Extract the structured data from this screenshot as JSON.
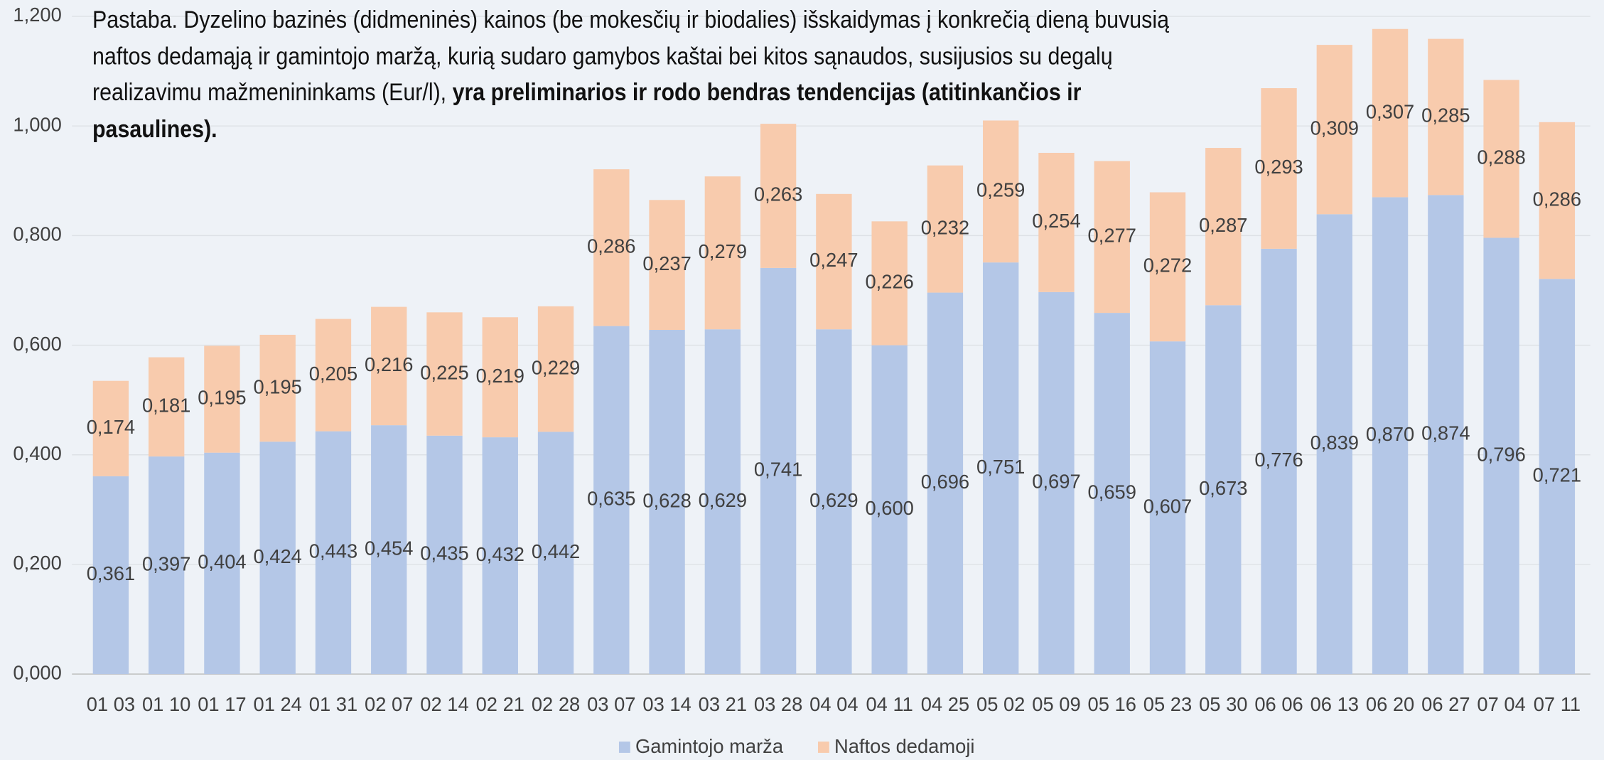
{
  "chart_data": {
    "type": "stacked_bar",
    "annotation": "Pastaba. Dyzelino bazinės (didmeninės) kainos (be mokesčių ir biodalies) išskaidymas į konkrečią dieną buvusią naftos dedamąją ir gamintojo maržą, kurią sudaro gamybos kaštai bei kitos sąnaudos, susijusios su degalų realizavimu mažmenininkams (Eur/l),",
    "annotation_bold": "yra preliminarios ir rodo bendras tendencijas (atitinkančios ir pasaulines).",
    "categories": [
      "01 03",
      "01 10",
      "01 17",
      "01 24",
      "01 31",
      "02 07",
      "02 14",
      "02 21",
      "02 28",
      "03 07",
      "03 14",
      "03 21",
      "03 28",
      "04 04",
      "04 11",
      "04 25",
      "05 02",
      "05 09",
      "05 16",
      "05 23",
      "05 30",
      "06 06",
      "06 13",
      "06 20",
      "06 27",
      "07 04",
      "07 11"
    ],
    "series": [
      {
        "name": "Gamintojo marža",
        "color": "#b4c7e7",
        "values": [
          0.361,
          0.397,
          0.404,
          0.424,
          0.443,
          0.454,
          0.435,
          0.432,
          0.442,
          0.635,
          0.628,
          0.629,
          0.741,
          0.629,
          0.6,
          0.696,
          0.751,
          0.697,
          0.659,
          0.607,
          0.673,
          0.776,
          0.839,
          0.87,
          0.874,
          0.796,
          0.721
        ],
        "value_labels": [
          "0,361",
          "0,397",
          "0,404",
          "0,424",
          "0,443",
          "0,454",
          "0,435",
          "0,432",
          "0,442",
          "0,635",
          "0,628",
          "0,629",
          "0,741",
          "0,629",
          "0,600",
          "0,696",
          "0,751",
          "0,697",
          "0,659",
          "0,607",
          "0,673",
          "0,776",
          "0,839",
          "0,870",
          "0,874",
          "0,796",
          "0,721"
        ]
      },
      {
        "name": "Naftos dedamoji",
        "color": "#f8cbad",
        "values": [
          0.174,
          0.181,
          0.195,
          0.195,
          0.205,
          0.216,
          0.225,
          0.219,
          0.229,
          0.286,
          0.237,
          0.279,
          0.263,
          0.247,
          0.226,
          0.232,
          0.259,
          0.254,
          0.277,
          0.272,
          0.287,
          0.293,
          0.309,
          0.307,
          0.285,
          0.288,
          0.286
        ],
        "value_labels": [
          "0,174",
          "0,181",
          "0,195",
          "0,195",
          "0,205",
          "0,216",
          "0,225",
          "0,219",
          "0,229",
          "0,286",
          "0,237",
          "0,279",
          "0,263",
          "0,247",
          "0,226",
          "0,232",
          "0,259",
          "0,254",
          "0,277",
          "0,272",
          "0,287",
          "0,293",
          "0,309",
          "0,307",
          "0,285",
          "0,288",
          "0,286"
        ]
      }
    ],
    "ylim": [
      0,
      1.2
    ],
    "yticks": [
      {
        "value": 0,
        "label": "0,000"
      },
      {
        "value": 0.2,
        "label": "0,200"
      },
      {
        "value": 0.4,
        "label": "0,400"
      },
      {
        "value": 0.6,
        "label": "0,600"
      },
      {
        "value": 0.8,
        "label": "0,800"
      },
      {
        "value": 1.0,
        "label": "1,000"
      },
      {
        "value": 1.2,
        "label": "1,200"
      }
    ],
    "grid": true,
    "legend": "bottom"
  }
}
